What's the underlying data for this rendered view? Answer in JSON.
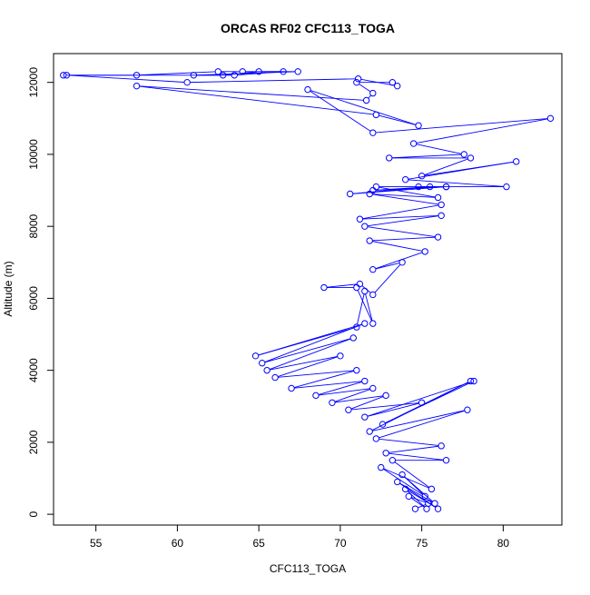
{
  "chart_data": {
    "type": "line",
    "title": "ORCAS RF02 CFC113_TOGA",
    "xlabel": "CFC113_TOGA",
    "ylabel": "Altitude (m)",
    "xlim": [
      52.4,
      83.6
    ],
    "ylim": [
      -300,
      12800
    ],
    "xticks": [
      55,
      60,
      65,
      70,
      75,
      80
    ],
    "yticks": [
      0,
      2000,
      4000,
      6000,
      8000,
      10000,
      12000
    ],
    "grid": false,
    "legend": "none",
    "colors": {
      "series": "#0000ff",
      "axis": "#000000",
      "background": "#ffffff"
    },
    "series": [
      {
        "marker": "open-circle",
        "x": [
          74.6,
          75.4,
          74.2,
          75.3,
          74.0,
          76.0,
          73.5,
          75.8,
          73.8,
          75.2,
          72.5,
          75.6,
          73.2,
          76.5,
          72.8,
          76.2,
          72.2,
          77.8,
          71.8,
          78.0,
          72.6,
          78.2,
          71.5,
          75.0,
          70.5,
          72.8,
          69.5,
          72.0,
          68.5,
          71.5,
          67.0,
          71.0,
          66.0,
          70.0,
          65.5,
          70.8,
          65.2,
          71.5,
          64.8,
          71.0,
          71.5,
          72.0,
          71.0,
          69.0,
          71.2,
          72.0,
          73.8,
          72.0,
          75.2,
          71.8,
          76.0,
          71.5,
          76.2,
          71.2,
          76.2,
          71.8,
          76.0,
          72.2,
          76.5,
          72.0,
          75.5,
          70.6,
          76.5,
          74.8,
          80.2,
          74.0,
          80.8,
          75.0,
          78.0,
          73.0,
          77.6,
          74.5,
          82.9,
          72.0,
          68.0,
          74.8,
          72.2,
          57.5,
          71.6,
          72.0,
          71.0,
          73.2,
          73.5,
          71.1,
          60.6,
          53.2,
          57.5,
          62.5,
          64.0,
          66.5,
          63.5,
          61.0,
          67.4,
          65.0,
          62.8,
          53.0
        ],
        "y": [
          150,
          300,
          500,
          150,
          700,
          150,
          900,
          300,
          1100,
          500,
          1300,
          700,
          1500,
          1500,
          1700,
          1900,
          2100,
          2900,
          2300,
          3700,
          2500,
          3700,
          2700,
          3100,
          2900,
          3300,
          3100,
          3500,
          3300,
          3700,
          3500,
          4000,
          3800,
          4400,
          4000,
          4900,
          4200,
          5300,
          4400,
          5200,
          6200,
          5300,
          6300,
          6300,
          6400,
          6100,
          7000,
          6800,
          7300,
          7600,
          7700,
          8000,
          8300,
          8200,
          8600,
          8900,
          8800,
          9100,
          9100,
          9000,
          9100,
          8900,
          9100,
          9100,
          9100,
          9300,
          9800,
          9400,
          9900,
          9900,
          10000,
          10300,
          11000,
          10600,
          11800,
          10800,
          11100,
          11900,
          11500,
          11700,
          12000,
          12000,
          11900,
          12100,
          12000,
          12200,
          12200,
          12300,
          12300,
          12300,
          12200,
          12200,
          12300,
          12300,
          12200,
          12200
        ]
      }
    ]
  }
}
